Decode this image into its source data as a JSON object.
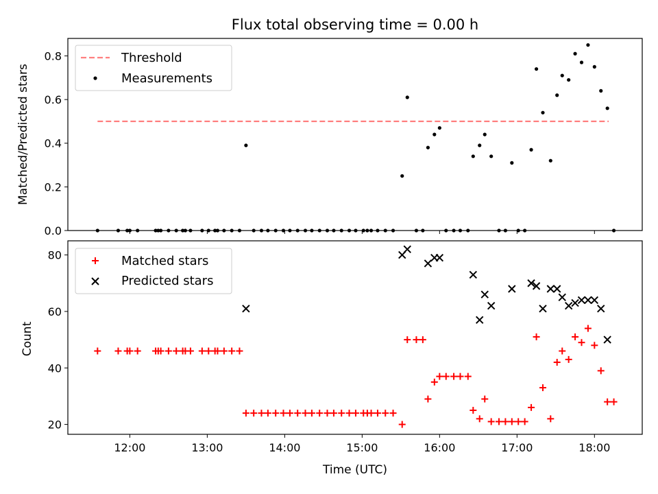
{
  "chart_data": [
    {
      "type": "scatter",
      "title": "Flux total observing time = 0.00 h",
      "xlabel": "",
      "ylabel": "Matched/Predicted stars",
      "ylim": [
        0,
        0.88
      ],
      "yticks": [
        "0.0",
        "0.2",
        "0.4",
        "0.6",
        "0.8"
      ],
      "xlim": [
        "11:12",
        "18:37"
      ],
      "grid": false,
      "legend_position": "top-left",
      "threshold": {
        "name": "Threshold",
        "value": 0.5,
        "x_range": [
          "11:35",
          "18:11"
        ],
        "color": "#ff7f7f",
        "style": "dashed"
      },
      "series": [
        {
          "name": "Measurements",
          "color": "#000000",
          "marker": "dot",
          "points": [
            [
              "11:35",
              0.0
            ],
            [
              "11:51",
              0.0
            ],
            [
              "11:58",
              0.0
            ],
            [
              "12:00",
              0.0
            ],
            [
              "12:06",
              0.0
            ],
            [
              "12:20",
              0.0
            ],
            [
              "12:22",
              0.0
            ],
            [
              "12:24",
              0.0
            ],
            [
              "12:30",
              0.0
            ],
            [
              "12:36",
              0.0
            ],
            [
              "12:41",
              0.0
            ],
            [
              "12:43",
              0.0
            ],
            [
              "12:47",
              0.0
            ],
            [
              "12:56",
              0.0
            ],
            [
              "13:01",
              0.0
            ],
            [
              "13:06",
              0.0
            ],
            [
              "13:08",
              0.0
            ],
            [
              "13:13",
              0.0
            ],
            [
              "13:19",
              0.0
            ],
            [
              "13:25",
              0.0
            ],
            [
              "13:30",
              0.39
            ],
            [
              "13:36",
              0.0
            ],
            [
              "13:42",
              0.0
            ],
            [
              "13:47",
              0.0
            ],
            [
              "13:53",
              0.0
            ],
            [
              "13:59",
              0.0
            ],
            [
              "14:04",
              0.0
            ],
            [
              "14:10",
              0.0
            ],
            [
              "14:16",
              0.0
            ],
            [
              "14:21",
              0.0
            ],
            [
              "14:27",
              0.0
            ],
            [
              "14:33",
              0.0
            ],
            [
              "14:38",
              0.0
            ],
            [
              "14:44",
              0.0
            ],
            [
              "14:50",
              0.0
            ],
            [
              "14:55",
              0.0
            ],
            [
              "15:01",
              0.0
            ],
            [
              "15:04",
              0.0
            ],
            [
              "15:07",
              0.0
            ],
            [
              "15:12",
              0.0
            ],
            [
              "15:18",
              0.0
            ],
            [
              "15:24",
              0.0
            ],
            [
              "15:31",
              0.25
            ],
            [
              "15:35",
              0.61
            ],
            [
              "15:42",
              0.0
            ],
            [
              "15:47",
              0.0
            ],
            [
              "15:51",
              0.38
            ],
            [
              "15:56",
              0.44
            ],
            [
              "16:00",
              0.47
            ],
            [
              "16:05",
              0.0
            ],
            [
              "16:11",
              0.0
            ],
            [
              "16:16",
              0.0
            ],
            [
              "16:22",
              0.0
            ],
            [
              "16:26",
              0.34
            ],
            [
              "16:31",
              0.39
            ],
            [
              "16:35",
              0.44
            ],
            [
              "16:40",
              0.34
            ],
            [
              "16:46",
              0.0
            ],
            [
              "16:51",
              0.0
            ],
            [
              "16:56",
              0.31
            ],
            [
              "17:01",
              0.0
            ],
            [
              "17:06",
              0.0
            ],
            [
              "17:11",
              0.37
            ],
            [
              "17:15",
              0.74
            ],
            [
              "17:20",
              0.54
            ],
            [
              "17:26",
              0.32
            ],
            [
              "17:31",
              0.62
            ],
            [
              "17:35",
              0.71
            ],
            [
              "17:40",
              0.69
            ],
            [
              "17:45",
              0.81
            ],
            [
              "17:50",
              0.77
            ],
            [
              "17:55",
              0.85
            ],
            [
              "18:00",
              0.75
            ],
            [
              "18:05",
              0.64
            ],
            [
              "18:10",
              0.56
            ],
            [
              "18:15",
              0.0
            ]
          ]
        }
      ]
    },
    {
      "type": "scatter",
      "title": "",
      "xlabel": "Time (UTC)",
      "ylabel": "Count",
      "ylim": [
        16.5,
        85
      ],
      "yticks": [
        "20",
        "40",
        "60",
        "80"
      ],
      "xlim": [
        "11:12",
        "18:37"
      ],
      "xticks": [
        "12:00",
        "13:00",
        "14:00",
        "15:00",
        "16:00",
        "17:00",
        "18:00"
      ],
      "grid": false,
      "legend_position": "top-left",
      "series": [
        {
          "name": "Matched stars",
          "color": "#ff0000",
          "marker": "plus",
          "points": [
            [
              "11:35",
              46
            ],
            [
              "11:51",
              46
            ],
            [
              "11:58",
              46
            ],
            [
              "12:00",
              46
            ],
            [
              "12:06",
              46
            ],
            [
              "12:20",
              46
            ],
            [
              "12:22",
              46
            ],
            [
              "12:24",
              46
            ],
            [
              "12:30",
              46
            ],
            [
              "12:36",
              46
            ],
            [
              "12:41",
              46
            ],
            [
              "12:43",
              46
            ],
            [
              "12:47",
              46
            ],
            [
              "12:56",
              46
            ],
            [
              "13:01",
              46
            ],
            [
              "13:06",
              46
            ],
            [
              "13:08",
              46
            ],
            [
              "13:13",
              46
            ],
            [
              "13:19",
              46
            ],
            [
              "13:25",
              46
            ],
            [
              "13:30",
              24
            ],
            [
              "13:36",
              24
            ],
            [
              "13:42",
              24
            ],
            [
              "13:47",
              24
            ],
            [
              "13:53",
              24
            ],
            [
              "13:59",
              24
            ],
            [
              "14:04",
              24
            ],
            [
              "14:10",
              24
            ],
            [
              "14:16",
              24
            ],
            [
              "14:21",
              24
            ],
            [
              "14:27",
              24
            ],
            [
              "14:33",
              24
            ],
            [
              "14:38",
              24
            ],
            [
              "14:44",
              24
            ],
            [
              "14:50",
              24
            ],
            [
              "14:55",
              24
            ],
            [
              "15:01",
              24
            ],
            [
              "15:04",
              24
            ],
            [
              "15:07",
              24
            ],
            [
              "15:12",
              24
            ],
            [
              "15:18",
              24
            ],
            [
              "15:24",
              24
            ],
            [
              "15:31",
              20
            ],
            [
              "15:35",
              50
            ],
            [
              "15:42",
              50
            ],
            [
              "15:47",
              50
            ],
            [
              "15:51",
              29
            ],
            [
              "15:56",
              35
            ],
            [
              "16:00",
              37
            ],
            [
              "16:05",
              37
            ],
            [
              "16:11",
              37
            ],
            [
              "16:16",
              37
            ],
            [
              "16:22",
              37
            ],
            [
              "16:26",
              25
            ],
            [
              "16:31",
              22
            ],
            [
              "16:35",
              29
            ],
            [
              "16:40",
              21
            ],
            [
              "16:46",
              21
            ],
            [
              "16:51",
              21
            ],
            [
              "16:56",
              21
            ],
            [
              "17:01",
              21
            ],
            [
              "17:06",
              21
            ],
            [
              "17:11",
              26
            ],
            [
              "17:15",
              51
            ],
            [
              "17:20",
              33
            ],
            [
              "17:26",
              22
            ],
            [
              "17:31",
              42
            ],
            [
              "17:35",
              46
            ],
            [
              "17:40",
              43
            ],
            [
              "17:45",
              51
            ],
            [
              "17:50",
              49
            ],
            [
              "17:55",
              54
            ],
            [
              "18:00",
              48
            ],
            [
              "18:05",
              39
            ],
            [
              "18:10",
              28
            ],
            [
              "18:15",
              28
            ]
          ]
        },
        {
          "name": "Predicted stars",
          "color": "#000000",
          "marker": "x",
          "points": [
            [
              "13:30",
              61
            ],
            [
              "15:31",
              80
            ],
            [
              "15:35",
              82
            ],
            [
              "15:51",
              77
            ],
            [
              "15:56",
              79
            ],
            [
              "16:00",
              79
            ],
            [
              "16:26",
              73
            ],
            [
              "16:31",
              57
            ],
            [
              "16:35",
              66
            ],
            [
              "16:40",
              62
            ],
            [
              "16:56",
              68
            ],
            [
              "17:11",
              70
            ],
            [
              "17:15",
              69
            ],
            [
              "17:20",
              61
            ],
            [
              "17:26",
              68
            ],
            [
              "17:31",
              68
            ],
            [
              "17:35",
              65
            ],
            [
              "17:40",
              62
            ],
            [
              "17:45",
              63
            ],
            [
              "17:50",
              64
            ],
            [
              "17:55",
              64
            ],
            [
              "18:00",
              64
            ],
            [
              "18:05",
              61
            ],
            [
              "18:10",
              50
            ]
          ]
        }
      ]
    }
  ]
}
